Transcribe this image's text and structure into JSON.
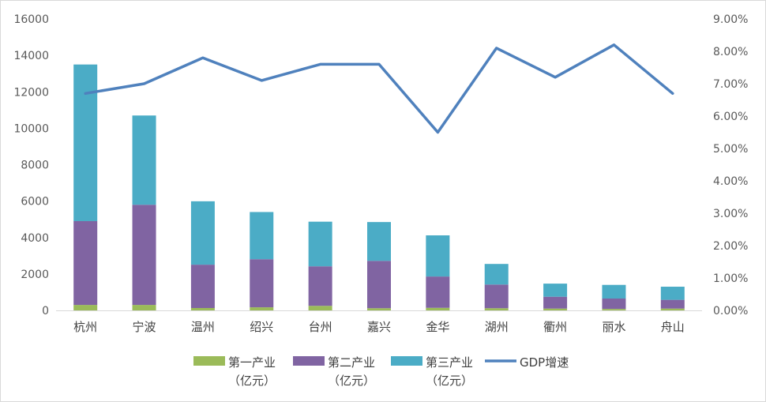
{
  "chart_data": {
    "type": "bar",
    "stacked": true,
    "categories": [
      "杭州",
      "宁波",
      "温州",
      "绍兴",
      "台州",
      "嘉兴",
      "金华",
      "湖州",
      "衢州",
      "丽水",
      "舟山"
    ],
    "series": [
      {
        "name": "第一产业",
        "name_line2": "（亿元）",
        "type": "bar",
        "axis": "left",
        "color": "#9bbb59",
        "values": [
          300,
          300,
          130,
          170,
          250,
          120,
          140,
          120,
          100,
          80,
          100
        ]
      },
      {
        "name": "第二产业",
        "name_line2": "（亿元）",
        "type": "bar",
        "axis": "left",
        "color": "#8064a2",
        "values": [
          4600,
          5500,
          2380,
          2640,
          2170,
          2600,
          1720,
          1300,
          650,
          570,
          480
        ]
      },
      {
        "name": "第三产业",
        "name_line2": "（亿元）",
        "type": "bar",
        "axis": "left",
        "color": "#4bacc6",
        "values": [
          8600,
          4900,
          3480,
          2590,
          2450,
          2130,
          2260,
          1130,
          720,
          750,
          720
        ]
      },
      {
        "name": "GDP增速",
        "type": "line",
        "axis": "right",
        "color": "#4f81bd",
        "values": [
          6.7,
          7.0,
          7.8,
          7.1,
          7.6,
          7.6,
          5.5,
          8.1,
          7.2,
          8.2,
          6.7
        ]
      }
    ],
    "y_left": {
      "min": 0,
      "max": 16000,
      "step": 2000,
      "ticks": [
        "0",
        "2000",
        "4000",
        "6000",
        "8000",
        "10000",
        "12000",
        "14000",
        "16000"
      ]
    },
    "y_right": {
      "min": 0,
      "max": 9,
      "step": 1,
      "ticks": [
        "0.00%",
        "1.00%",
        "2.00%",
        "3.00%",
        "4.00%",
        "5.00%",
        "6.00%",
        "7.00%",
        "8.00%",
        "9.00%"
      ]
    },
    "grid": false,
    "legend": "bottom"
  }
}
